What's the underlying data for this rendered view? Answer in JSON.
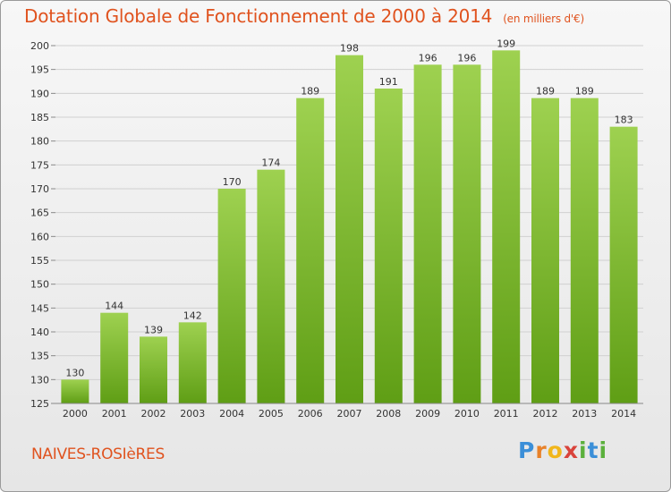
{
  "header": {
    "title": "Dotation Globale de Fonctionnement de 2000 à 2014",
    "subtitle": "(en milliers d'€)"
  },
  "footer": {
    "commune": "NAIVES-ROSIèRES",
    "logo_letters": [
      "P",
      "r",
      "o",
      "x",
      "i",
      "t",
      "i"
    ]
  },
  "colors": {
    "title": "#e0531f",
    "bar_top": "#9ed150",
    "bar_bottom": "#5f9e15",
    "grid": "#d0d0d0"
  },
  "chart_data": {
    "type": "bar",
    "title": "Dotation Globale de Fonctionnement de 2000 à 2014",
    "subtitle": "(en milliers d'€)",
    "categories": [
      "2000",
      "2001",
      "2002",
      "2003",
      "2004",
      "2005",
      "2006",
      "2007",
      "2008",
      "2009",
      "2010",
      "2011",
      "2012",
      "2013",
      "2014"
    ],
    "values": [
      130,
      144,
      139,
      142,
      170,
      174,
      189,
      198,
      191,
      196,
      196,
      199,
      189,
      189,
      183
    ],
    "ylim": [
      125,
      200
    ],
    "yticks": [
      125,
      130,
      135,
      140,
      145,
      150,
      155,
      160,
      165,
      170,
      175,
      180,
      185,
      190,
      195,
      200
    ],
    "grid": true,
    "legend": "none"
  }
}
